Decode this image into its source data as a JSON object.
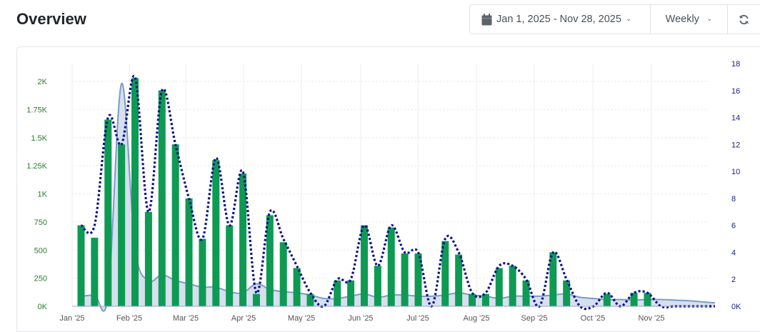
{
  "header": {
    "title": "Overview",
    "date_range": "Jan 1, 2025 - Nov 28, 2025",
    "period": "Weekly",
    "calendar_icon": "calendar-icon",
    "refresh_icon": "refresh-icon"
  },
  "colors": {
    "bars": "#0e9a53",
    "dotted_line": "#0b0f8a",
    "area_fill": "#c9d6e8",
    "area_line": "#7c9cc6",
    "left_axis": "#2e7d32",
    "right_axis": "#1a237e"
  },
  "chart_data": {
    "type": "bar",
    "grid": true,
    "ylim_left": [
      0,
      2000
    ],
    "ylim_right": [
      0,
      18
    ],
    "y_left_ticks": [
      "0K",
      "250",
      "500",
      "750",
      "1K",
      "1.25K",
      "1.5K",
      "1.75K",
      "2K"
    ],
    "y_right_ticks": [
      "0K",
      "2",
      "4",
      "6",
      "8",
      "10",
      "12",
      "14",
      "16",
      "18"
    ],
    "x_tick_labels": [
      "Jan '25",
      "Feb '25",
      "Mar '25",
      "Apr '25",
      "May '25",
      "Jun '25",
      "Jul '25",
      "Aug '25",
      "Sep '25",
      "Oct '25",
      "Nov '25"
    ],
    "weeks": 48,
    "bar_values": [
      720,
      610,
      1660,
      1440,
      2030,
      840,
      1920,
      1440,
      960,
      600,
      1300,
      720,
      1180,
      110,
      810,
      570,
      340,
      110,
      0,
      230,
      230,
      720,
      360,
      700,
      470,
      470,
      0,
      580,
      460,
      110,
      110,
      340,
      360,
      230,
      0,
      480,
      230,
      0,
      0,
      110,
      0,
      120,
      120,
      0,
      0,
      0,
      0,
      0
    ],
    "dotted_values": [
      6,
      6,
      14,
      12,
      17,
      7,
      16,
      12,
      8,
      5,
      11,
      6,
      10,
      1,
      7,
      5,
      3,
      1,
      0,
      2,
      2,
      6,
      3,
      6,
      4,
      4,
      0,
      5,
      4,
      1,
      1,
      3,
      3,
      2,
      0,
      4,
      2,
      0,
      0,
      1,
      0,
      1,
      1,
      0,
      0,
      0,
      0,
      0
    ],
    "area_values": [
      90,
      100,
      95,
      1980,
      520,
      230,
      280,
      230,
      200,
      170,
      170,
      130,
      120,
      200,
      150,
      130,
      120,
      100,
      70,
      70,
      90,
      110,
      80,
      100,
      100,
      90,
      90,
      100,
      120,
      100,
      90,
      70,
      90,
      90,
      90,
      100,
      110,
      80,
      70,
      60,
      60,
      55,
      60,
      60,
      55,
      50,
      40,
      30
    ]
  }
}
